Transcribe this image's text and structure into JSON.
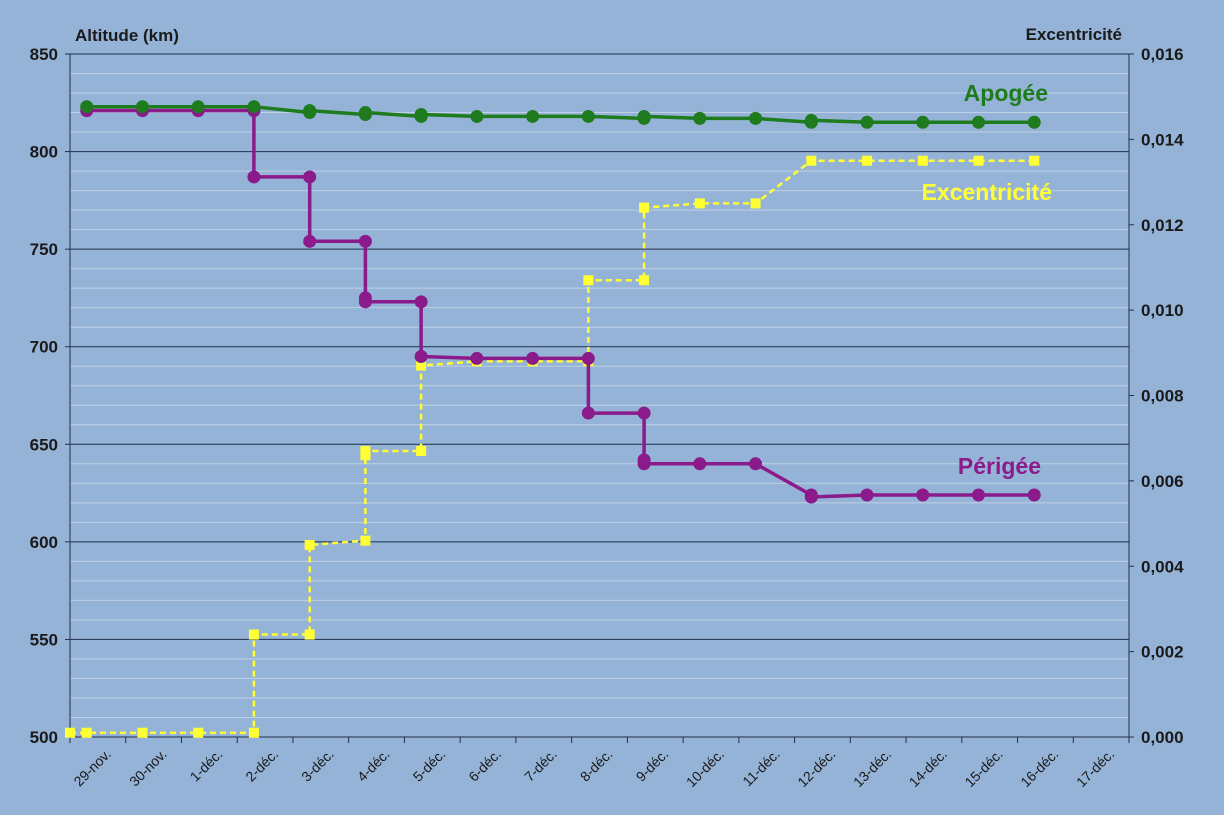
{
  "chart_data": {
    "type": "line",
    "title": "",
    "y_left": {
      "label": "Altitude (km)",
      "min": 500,
      "max": 850,
      "ticks": [
        "500",
        "550",
        "600",
        "650",
        "700",
        "750",
        "800",
        "850"
      ]
    },
    "y_right": {
      "label": "Excentricité",
      "min": 0,
      "max": 0.016,
      "ticks": [
        "0,000",
        "0,002",
        "0,004",
        "0,006",
        "0,008",
        "0,010",
        "0,012",
        "0,014",
        "0,016"
      ]
    },
    "x_ticks": [
      "29-nov.",
      "30-nov.",
      "1-déc.",
      "2-déc.",
      "3-déc.",
      "4-déc.",
      "5-déc.",
      "6-déc.",
      "7-déc.",
      "8-déc.",
      "9-déc.",
      "10-déc.",
      "11-déc.",
      "12-déc.",
      "13-déc.",
      "14-déc.",
      "15-déc.",
      "16-déc.",
      "17-déc."
    ],
    "x_start_date": "29-nov.",
    "grid": {
      "major": true,
      "minor": true
    },
    "colors": {
      "apogee": "#1e7b1e",
      "perigee": "#8b1a8b",
      "eccentricity": "#ffff33",
      "background": "#95b3d7",
      "major_grid": "#1f2f4a",
      "minor_grid": "#c0d0e6"
    },
    "series": [
      {
        "name": "Apogée",
        "axis": "left",
        "style": "solid",
        "marker": "circle",
        "points": [
          [
            0.3,
            823
          ],
          [
            1.3,
            823
          ],
          [
            2.3,
            823
          ],
          [
            3.3,
            823
          ],
          [
            4.3,
            820
          ],
          [
            4.3,
            821
          ],
          [
            5.3,
            819
          ],
          [
            5.3,
            820
          ],
          [
            6.3,
            818
          ],
          [
            6.3,
            819
          ],
          [
            7.3,
            818
          ],
          [
            8.3,
            818
          ],
          [
            9.3,
            818
          ],
          [
            10.3,
            817
          ],
          [
            10.3,
            818
          ],
          [
            11.3,
            817
          ],
          [
            12.3,
            817
          ],
          [
            13.3,
            815
          ],
          [
            13.3,
            816
          ],
          [
            14.3,
            815
          ],
          [
            15.3,
            815
          ],
          [
            16.3,
            815
          ],
          [
            17.3,
            815
          ]
        ]
      },
      {
        "name": "Périgée",
        "axis": "left",
        "style": "solid",
        "marker": "circle",
        "points": [
          [
            0.3,
            821
          ],
          [
            1.3,
            821
          ],
          [
            2.3,
            821
          ],
          [
            3.3,
            821
          ],
          [
            3.3,
            787
          ],
          [
            4.3,
            787
          ],
          [
            4.3,
            754
          ],
          [
            5.3,
            754
          ],
          [
            5.3,
            725
          ],
          [
            5.3,
            723
          ],
          [
            6.3,
            723
          ],
          [
            6.3,
            695
          ],
          [
            7.3,
            694
          ],
          [
            8.3,
            694
          ],
          [
            9.3,
            694
          ],
          [
            9.3,
            666
          ],
          [
            10.3,
            666
          ],
          [
            10.3,
            642
          ],
          [
            10.3,
            640
          ],
          [
            11.3,
            640
          ],
          [
            12.3,
            640
          ],
          [
            13.3,
            624
          ],
          [
            13.3,
            623
          ],
          [
            14.3,
            624
          ],
          [
            15.3,
            624
          ],
          [
            16.3,
            624
          ],
          [
            17.3,
            624
          ]
        ]
      },
      {
        "name": "Excentricité",
        "axis": "right",
        "style": "dashed",
        "marker": "square",
        "points": [
          [
            0.0,
            0.0001
          ],
          [
            0.3,
            0.0001
          ],
          [
            1.3,
            0.0001
          ],
          [
            2.3,
            0.0001
          ],
          [
            3.3,
            0.0001
          ],
          [
            3.3,
            0.0024
          ],
          [
            4.3,
            0.0024
          ],
          [
            4.3,
            0.0045
          ],
          [
            5.3,
            0.0046
          ],
          [
            5.3,
            0.0066
          ],
          [
            5.3,
            0.0067
          ],
          [
            6.3,
            0.0067
          ],
          [
            6.3,
            0.0087
          ],
          [
            7.3,
            0.0088
          ],
          [
            8.3,
            0.0088
          ],
          [
            9.3,
            0.0088
          ],
          [
            9.3,
            0.0107
          ],
          [
            10.3,
            0.0107
          ],
          [
            10.3,
            0.0124
          ],
          [
            11.3,
            0.0125
          ],
          [
            12.3,
            0.0125
          ],
          [
            13.3,
            0.0135
          ],
          [
            14.3,
            0.0135
          ],
          [
            15.3,
            0.0135
          ],
          [
            16.3,
            0.0135
          ],
          [
            17.3,
            0.0135
          ]
        ]
      }
    ]
  }
}
